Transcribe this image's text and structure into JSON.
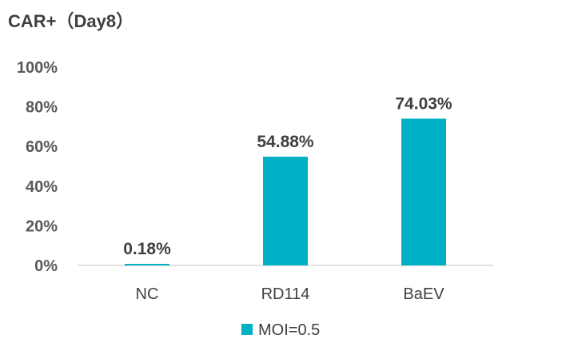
{
  "chart_data": {
    "type": "bar",
    "title": "CAR+（Day8）",
    "categories": [
      "NC",
      "RD114",
      "BaEV"
    ],
    "series": [
      {
        "name": "MOI=0.5",
        "values": [
          0.18,
          54.88,
          74.03
        ],
        "data_labels": [
          "0.18%",
          "54.88%",
          "74.03%"
        ],
        "color": "#00B0C4"
      }
    ],
    "ylim": [
      0,
      100
    ],
    "yticks": [
      0,
      20,
      40,
      60,
      80,
      100
    ],
    "ytick_labels": [
      "0%",
      "20%",
      "40%",
      "60%",
      "80%",
      "100%"
    ],
    "xlabel": "",
    "ylabel": "",
    "grid": false,
    "legend_position": "bottom"
  }
}
